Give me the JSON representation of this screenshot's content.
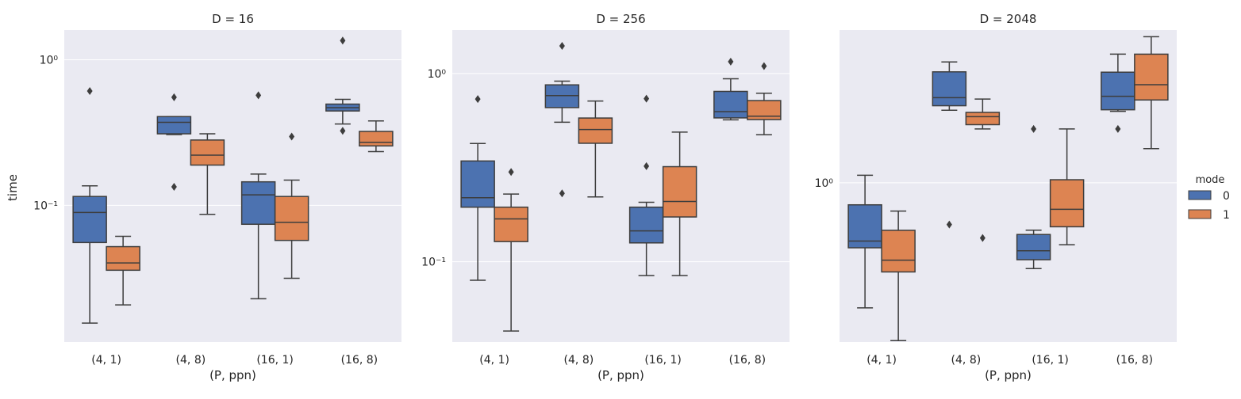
{
  "chart_data": {
    "type": "box",
    "facet_label": "D",
    "panel_titles": [
      "D = 16",
      "D = 256",
      "D = 2048"
    ],
    "categories": [
      "(4, 1)",
      "(4, 8)",
      "(16, 1)",
      "(16, 8)"
    ],
    "xlabel": "(P, ppn)",
    "ylabel": "time",
    "yscale": "log",
    "legend": {
      "title": "mode",
      "entries": [
        "0",
        "1"
      ],
      "placement": "right"
    },
    "colors": {
      "mode_0": "#4c72b0",
      "mode_1": "#dd8452",
      "background": "#eaeaf2",
      "grid": "#ffffff",
      "line": "#3d3d3d"
    },
    "panels": [
      {
        "D": "16",
        "ylim": [
          0.0115,
          1.6
        ],
        "yticks": [
          {
            "value": 0.1,
            "label": "10⁻¹"
          },
          {
            "value": 1,
            "label": "10⁰"
          }
        ],
        "series": [
          {
            "mode": "0",
            "boxes": [
              {
                "min": 0.0155,
                "q1": 0.0555,
                "median": 0.0893,
                "q3": 0.115,
                "max": 0.136,
                "outliers": [
                  0.61
                ]
              },
              {
                "min": 0.306,
                "q1": 0.31,
                "median": 0.372,
                "q3": 0.407,
                "max": 0.407,
                "outliers": [
                  0.553,
                  0.134
                ]
              },
              {
                "min": 0.0228,
                "q1": 0.0741,
                "median": 0.118,
                "q3": 0.145,
                "max": 0.164,
                "outliers": [
                  0.57
                ]
              },
              {
                "min": 0.362,
                "q1": 0.445,
                "median": 0.469,
                "q3": 0.496,
                "max": 0.535,
                "outliers": [
                  1.355,
                  0.325
                ]
              }
            ]
          },
          {
            "mode": "1",
            "boxes": [
              {
                "min": 0.0207,
                "q1": 0.0358,
                "median": 0.0402,
                "q3": 0.052,
                "max": 0.0612,
                "outliers": []
              },
              {
                "min": 0.0867,
                "q1": 0.189,
                "median": 0.221,
                "q3": 0.281,
                "max": 0.31,
                "outliers": []
              },
              {
                "min": 0.0315,
                "q1": 0.0574,
                "median": 0.0764,
                "q3": 0.115,
                "max": 0.149,
                "outliers": [
                  0.297
                ]
              },
              {
                "min": 0.234,
                "q1": 0.256,
                "median": 0.271,
                "q3": 0.322,
                "max": 0.38,
                "outliers": []
              }
            ]
          }
        ]
      },
      {
        "D": "256",
        "ylim": [
          0.0375,
          1.7
        ],
        "yticks": [
          {
            "value": 0.1,
            "label": "10⁻¹"
          },
          {
            "value": 1,
            "label": "10⁰"
          }
        ],
        "series": [
          {
            "mode": "0",
            "boxes": [
              {
                "min": 0.0798,
                "q1": 0.195,
                "median": 0.219,
                "q3": 0.343,
                "max": 0.425,
                "outliers": [
                  0.731
                ]
              },
              {
                "min": 0.551,
                "q1": 0.659,
                "median": 0.763,
                "q3": 0.87,
                "max": 0.91,
                "outliers": [
                  1.4,
                  0.231
                ]
              },
              {
                "min": 0.0845,
                "q1": 0.126,
                "median": 0.146,
                "q3": 0.195,
                "max": 0.207,
                "outliers": [
                  0.322,
                  0.735
                ]
              },
              {
                "min": 0.567,
                "q1": 0.581,
                "median": 0.627,
                "q3": 0.803,
                "max": 0.937,
                "outliers": [
                  1.155
                ]
              }
            ]
          },
          {
            "mode": "1",
            "boxes": [
              {
                "min": 0.0429,
                "q1": 0.128,
                "median": 0.169,
                "q3": 0.195,
                "max": 0.229,
                "outliers": [
                  0.3
                ]
              },
              {
                "min": 0.221,
                "q1": 0.426,
                "median": 0.504,
                "q3": 0.58,
                "max": 0.714,
                "outliers": []
              },
              {
                "min": 0.0845,
                "q1": 0.173,
                "median": 0.209,
                "q3": 0.32,
                "max": 0.488,
                "outliers": []
              },
              {
                "min": 0.473,
                "q1": 0.569,
                "median": 0.593,
                "q3": 0.718,
                "max": 0.786,
                "outliers": [
                  1.095
                ]
              }
            ]
          }
        ]
      },
      {
        "D": "2048",
        "ylim": [
          0.216,
          4.35
        ],
        "yticks": [
          {
            "value": 1,
            "label": "10⁰"
          }
        ],
        "series": [
          {
            "mode": "0",
            "boxes": [
              {
                "min": 0.3,
                "q1": 0.535,
                "median": 0.571,
                "q3": 0.809,
                "max": 1.075,
                "outliers": []
              },
              {
                "min": 2.01,
                "q1": 2.1,
                "median": 2.27,
                "q3": 2.91,
                "max": 3.2,
                "outliers": [
                  0.669
                ]
              },
              {
                "min": 0.438,
                "q1": 0.477,
                "median": 0.52,
                "q3": 0.608,
                "max": 0.634,
                "outliers": [
                  1.68
                ]
              },
              {
                "min": 1.99,
                "q1": 2.02,
                "median": 2.3,
                "q3": 2.9,
                "max": 3.45,
                "outliers": [
                  1.68
                ]
              }
            ]
          },
          {
            "mode": "1",
            "boxes": [
              {
                "min": 0.219,
                "q1": 0.424,
                "median": 0.475,
                "q3": 0.633,
                "max": 0.762,
                "outliers": []
              },
              {
                "min": 1.68,
                "q1": 1.75,
                "median": 1.89,
                "q3": 1.97,
                "max": 2.24,
                "outliers": [
                  0.588
                ]
              },
              {
                "min": 0.551,
                "q1": 0.655,
                "median": 0.775,
                "q3": 1.03,
                "max": 1.68,
                "outliers": []
              },
              {
                "min": 1.39,
                "q1": 2.22,
                "median": 2.57,
                "q3": 3.45,
                "max": 4.08,
                "outliers": []
              }
            ]
          }
        ]
      }
    ]
  }
}
